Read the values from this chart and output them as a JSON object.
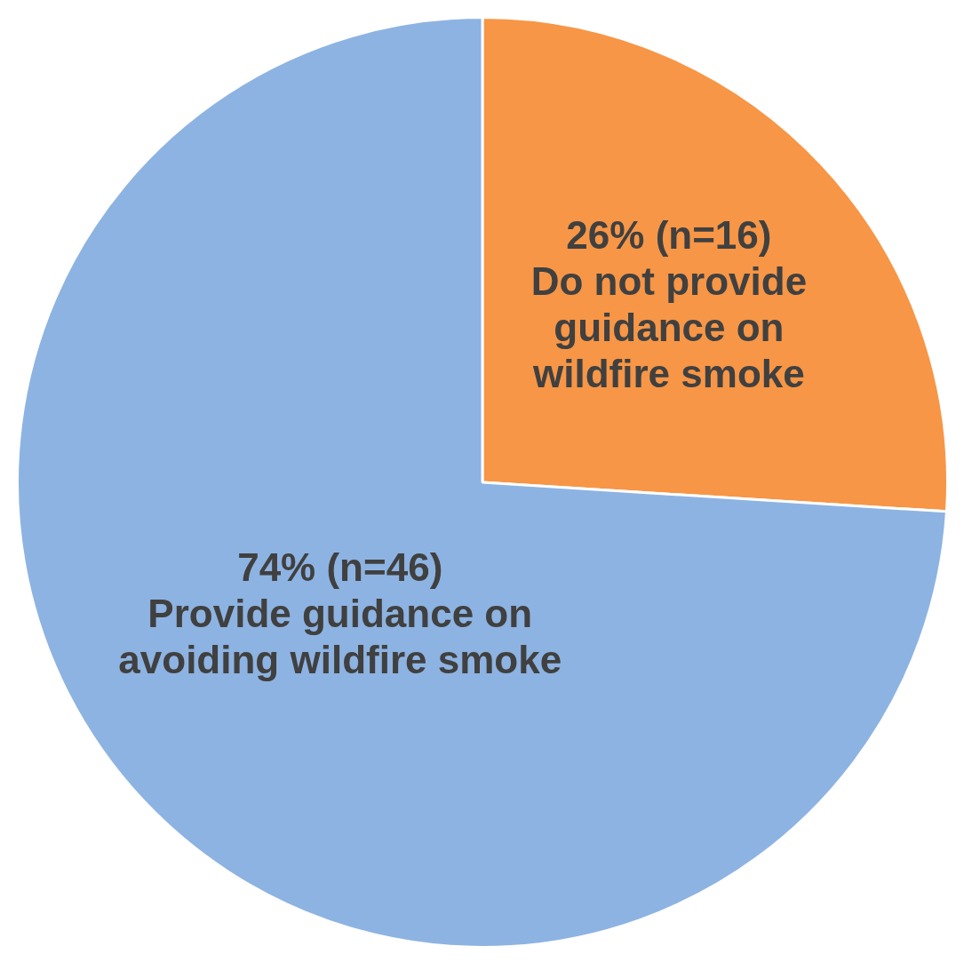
{
  "chart_data": {
    "type": "pie",
    "categories": [
      "Do not provide guidance on wildfire smoke",
      "Provide guidance on avoiding wildfire smoke"
    ],
    "values": [
      26,
      74
    ],
    "value_labels": [
      "26% (n=16)",
      "74% (n=46)"
    ],
    "colors": [
      "#f79646",
      "#8db3e2"
    ],
    "legend": false
  }
}
